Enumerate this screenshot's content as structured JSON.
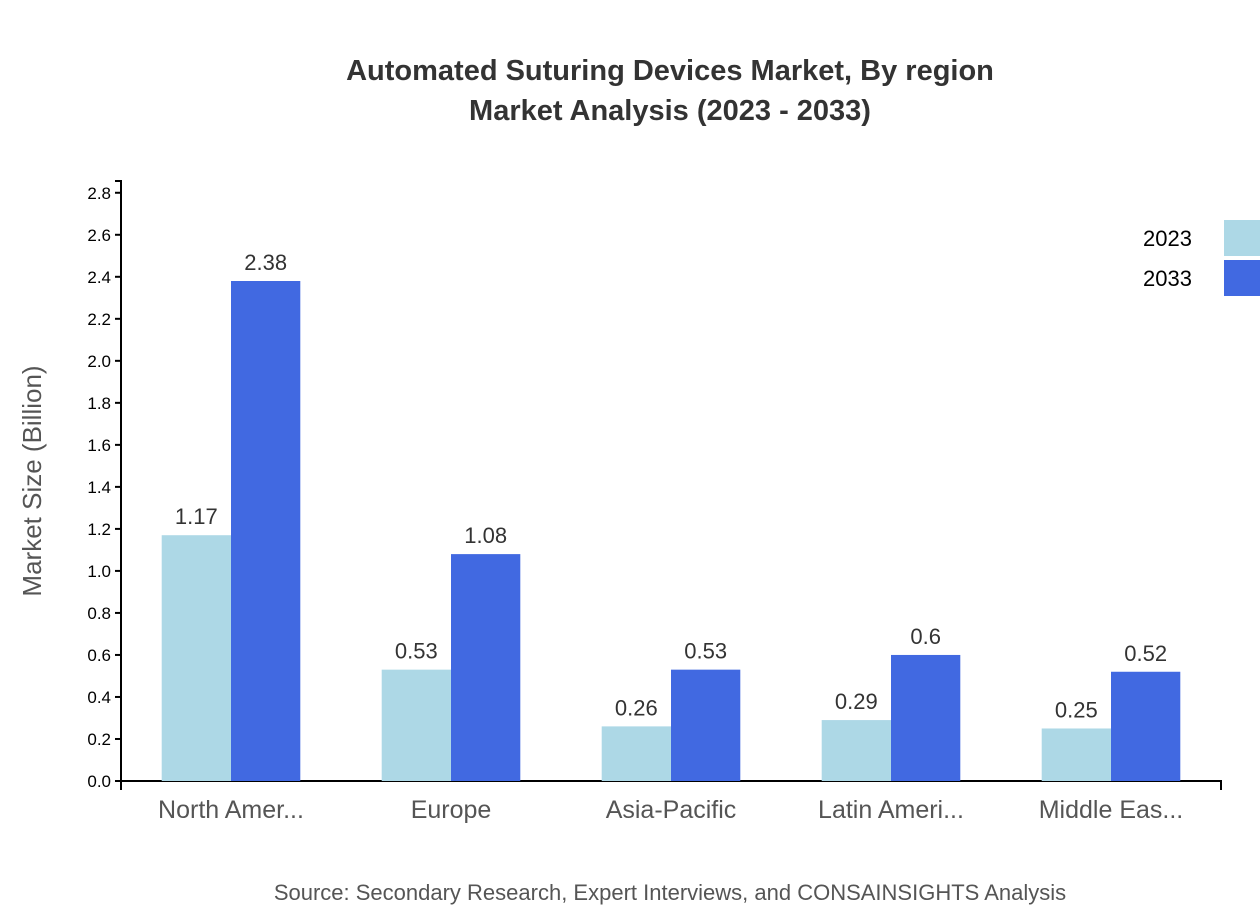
{
  "chart_data": {
    "type": "bar",
    "title": "Automated Suturing Devices Market, By region",
    "subtitle": "Market Analysis (2023 - 2033)",
    "ylabel": "Market Size (Billion)",
    "xlabel": "",
    "categories": [
      "North Amer...",
      "Europe",
      "Asia-Pacific",
      "Latin Ameri...",
      "Middle Eas..."
    ],
    "series": [
      {
        "name": "2023",
        "color": "#add8e6",
        "values": [
          1.17,
          0.53,
          0.26,
          0.29,
          0.25
        ]
      },
      {
        "name": "2033",
        "color": "#4169e1",
        "values": [
          2.38,
          1.08,
          0.53,
          0.6,
          0.52
        ]
      }
    ],
    "ylim": [
      0,
      2.856
    ],
    "yticks": [
      "0.0",
      "0.2",
      "0.4",
      "0.6",
      "0.8",
      "1.0",
      "1.2",
      "1.4",
      "1.6",
      "1.8",
      "2.0",
      "2.2",
      "2.4",
      "2.6",
      "2.8"
    ],
    "grid": false,
    "legend_position": "top-right",
    "source": "Source: Secondary Research, Expert Interviews, and CONSAINSIGHTS Analysis"
  }
}
